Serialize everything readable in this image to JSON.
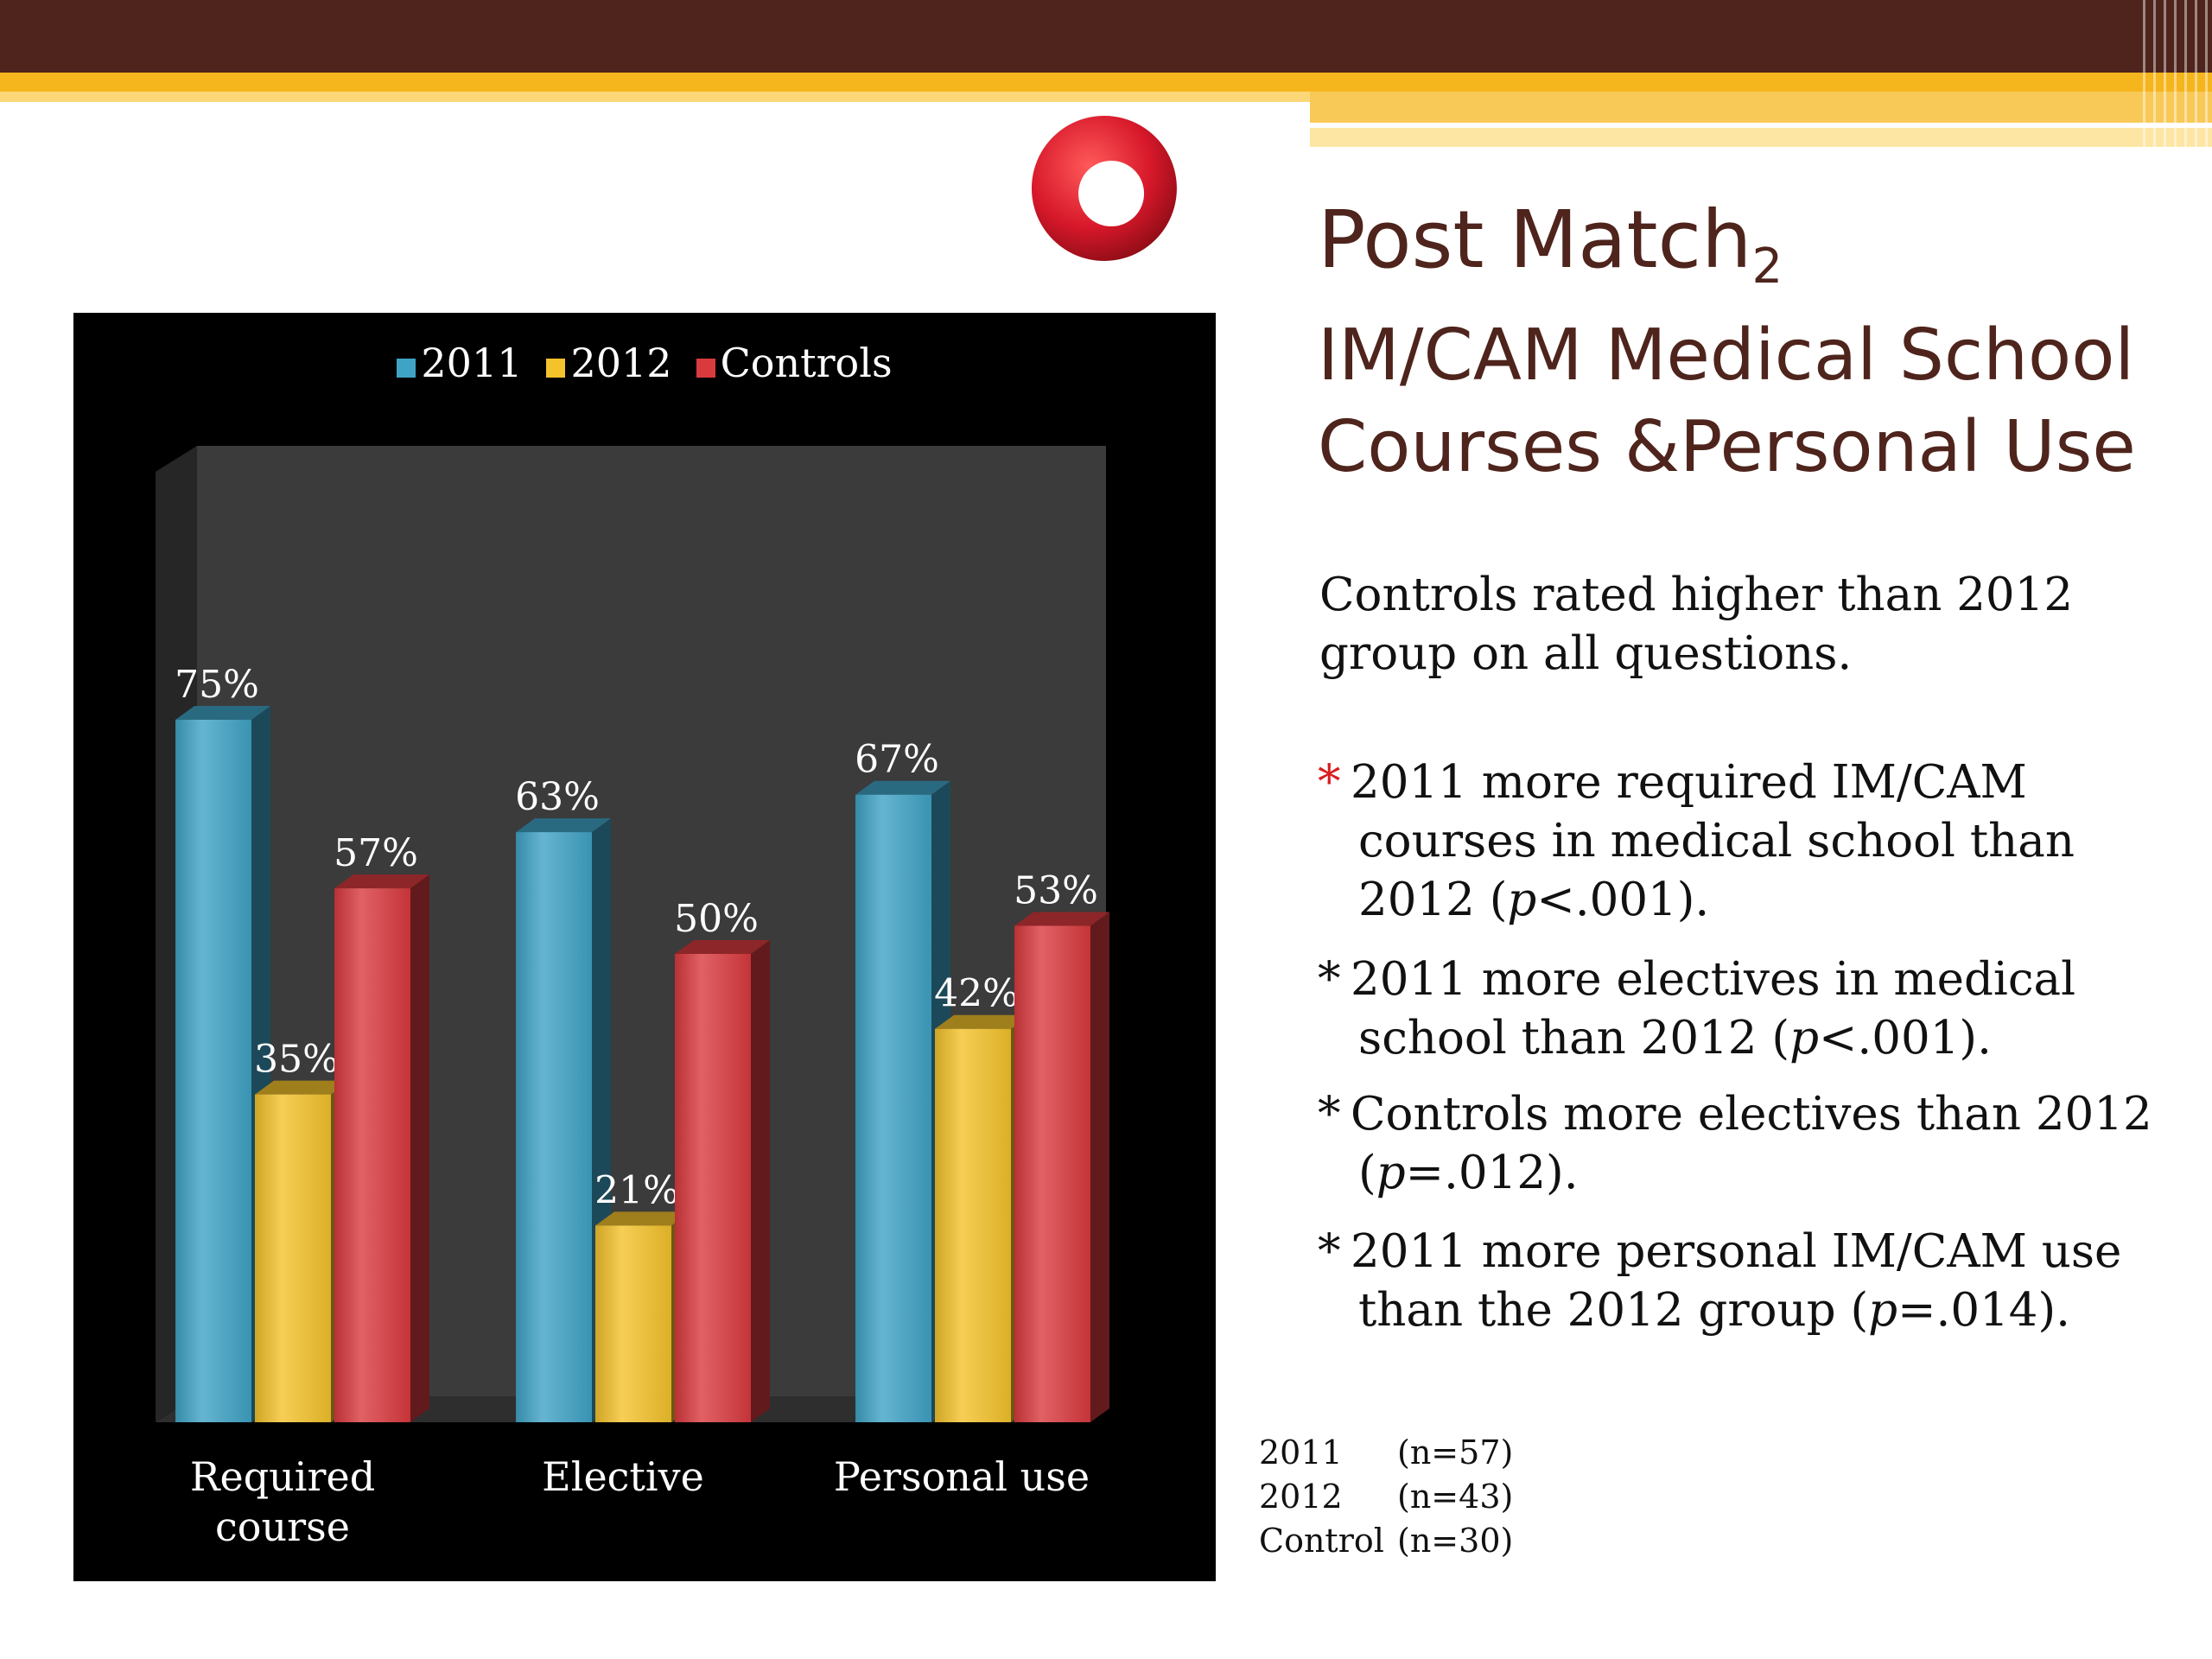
{
  "slide": {
    "title": "Post Match",
    "title_subscript": "2",
    "subtitle_line1": "IM/CAM Medical School",
    "subtitle_line2": "Courses &Personal Use",
    "summary": "Controls rated higher than 2012 group on all questions.",
    "bullets": [
      {
        "star": "*",
        "line1": "2011 more required IM/CAM",
        "line2": "courses in medical school than",
        "line3": "2012 (p<.001)."
      },
      {
        "star": "*",
        "line1": "2011 more electives in medical",
        "line2": "school than 2012 (p<.001)."
      },
      {
        "star": "*",
        "line1": "Controls more electives than 2012",
        "line2": "(p=.012)."
      },
      {
        "star": "*",
        "line1": "2011 more personal IM/CAM use",
        "line2": "than the 2012 group (p=.014)."
      }
    ],
    "sample_sizes": [
      {
        "group": "2011",
        "n": "(n=57)"
      },
      {
        "group": "2012",
        "n": "(n=43)"
      },
      {
        "group": "Control",
        "n": "(n=30)"
      }
    ],
    "colors": {
      "brown": "#4e241c",
      "gold": "#f5b51c",
      "accent_red": "#d81e1e"
    }
  },
  "chart_data": {
    "type": "bar",
    "categories": [
      "Required course",
      "Elective",
      "Personal use"
    ],
    "series": [
      {
        "name": "2011",
        "values": [
          75,
          63,
          67
        ],
        "labels": [
          "75%",
          "63%",
          "67%"
        ],
        "color": "#3fa3c6"
      },
      {
        "name": "2012",
        "values": [
          35,
          21,
          42
        ],
        "labels": [
          "35%",
          "21%",
          "42%"
        ],
        "color": "#f4c22b"
      },
      {
        "name": "Controls",
        "values": [
          57,
          50,
          53
        ],
        "labels": [
          "57%",
          "50%",
          "53%"
        ],
        "color": "#d93a3e"
      }
    ],
    "ylim": [
      0,
      100
    ],
    "grid": false,
    "legend_position": "top",
    "style": "3d-bar"
  }
}
